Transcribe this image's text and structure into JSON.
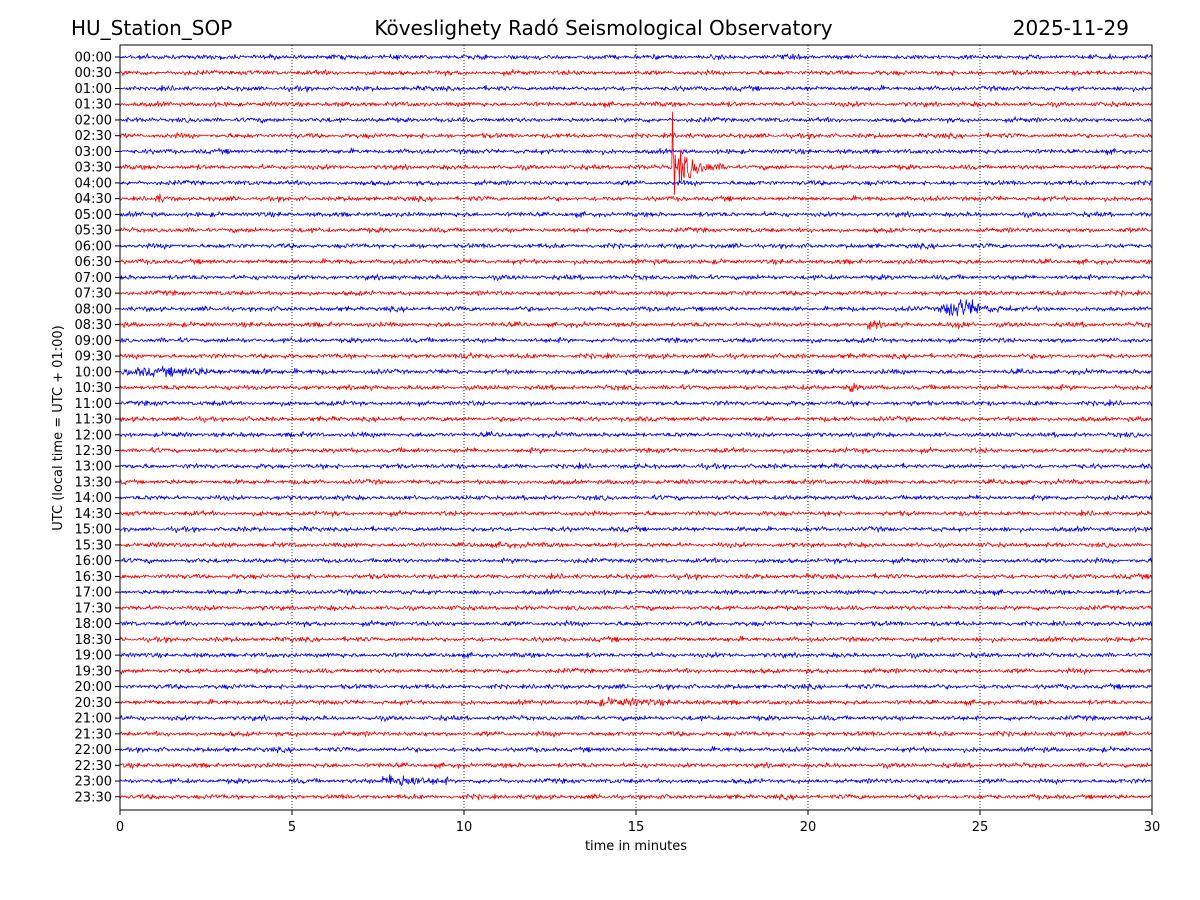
{
  "header": {
    "station": "HU_Station_SOP",
    "observatory": "Köveslighety Radó Seismological Observatory",
    "date": "2025-11-29"
  },
  "chart_data": {
    "type": "line",
    "title": "Köveslighety Radó Seismological Observatory",
    "xlabel": "time in minutes",
    "ylabel": "UTC (local time = UTC + 01:00)",
    "xlim": [
      0,
      30
    ],
    "xticks": [
      "0",
      "5",
      "10",
      "15",
      "20",
      "25",
      "30"
    ],
    "xgrid": "dotted vertical at 5-minute intervals",
    "row_labels": [
      "00:00",
      "00:30",
      "01:00",
      "01:30",
      "02:00",
      "02:30",
      "03:00",
      "03:30",
      "04:00",
      "04:30",
      "05:00",
      "05:30",
      "06:00",
      "06:30",
      "07:00",
      "07:30",
      "08:00",
      "08:30",
      "09:00",
      "09:30",
      "10:00",
      "10:30",
      "11:00",
      "11:30",
      "12:00",
      "12:30",
      "13:00",
      "13:30",
      "14:00",
      "14:30",
      "15:00",
      "15:30",
      "16:00",
      "16:30",
      "17:00",
      "17:30",
      "18:00",
      "18:30",
      "19:00",
      "19:30",
      "20:00",
      "20:30",
      "21:00",
      "21:30",
      "22:00",
      "22:30",
      "23:00",
      "23:30"
    ],
    "row_colors": [
      "#0000ff",
      "#ff0000"
    ],
    "noise_amplitude": 1,
    "events": [
      {
        "row": "03:30",
        "start_min": 16.05,
        "end_min": 18.0,
        "peak_amplitude": 14,
        "impulsive": true
      },
      {
        "row": "08:00",
        "start_min": 23.8,
        "end_min": 26.0,
        "peak_amplitude": 5
      },
      {
        "row": "08:30",
        "start_min": 21.7,
        "end_min": 22.3,
        "peak_amplitude": 2
      },
      {
        "row": "08:30",
        "start_min": 24.2,
        "end_min": 24.8,
        "peak_amplitude": 2
      },
      {
        "row": "10:00",
        "start_min": 0.0,
        "end_min": 5.2,
        "peak_amplitude": 1.8
      },
      {
        "row": "10:30",
        "start_min": 21.1,
        "end_min": 21.6,
        "peak_amplitude": 2
      },
      {
        "row": "04:30",
        "start_min": 1.0,
        "end_min": 1.5,
        "peak_amplitude": 1.6
      },
      {
        "row": "09:30",
        "start_min": 9.9,
        "end_min": 10.5,
        "peak_amplitude": 1.6
      },
      {
        "row": "15:30",
        "start_min": 11.0,
        "end_min": 11.8,
        "peak_amplitude": 1.6
      },
      {
        "row": "20:30",
        "start_min": 13.8,
        "end_min": 16.8,
        "peak_amplitude": 1.6
      },
      {
        "row": "23:00",
        "start_min": 7.6,
        "end_min": 9.6,
        "peak_amplitude": 3.5
      }
    ]
  }
}
